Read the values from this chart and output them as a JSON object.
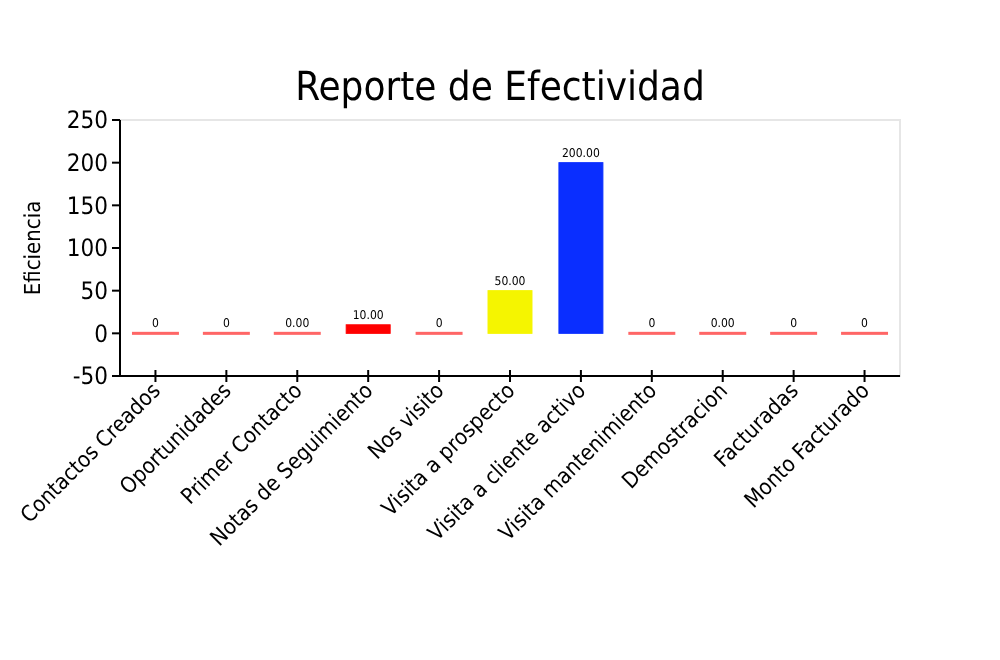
{
  "chart_data": {
    "type": "bar",
    "title": "Reporte de Efectividad",
    "ylabel": "Eficiencia",
    "categories": [
      "Contactos Creados",
      "Oportunidades",
      "Primer Contacto",
      "Notas de Seguimiento",
      "Nos visito",
      "Visita a prospecto",
      "Visita a cliente activo",
      "Visita mantenimiento",
      "Demostracion",
      "Facturadas",
      "Monto Facturado"
    ],
    "values": [
      0,
      0,
      0,
      10,
      0,
      50,
      200,
      0,
      0,
      0,
      0
    ],
    "colors": [
      "#ff6666",
      "#ff6666",
      "#ff6666",
      "#ff0000",
      "#ff6666",
      "#f5f500",
      "#0a2eff",
      "#ff6666",
      "#ff6666",
      "#ff6666",
      "#ff6666"
    ],
    "value_labels": [
      "0",
      "0",
      "0.00",
      "10.00",
      "0",
      "50.00",
      "200.00",
      "0",
      "0.00",
      "0",
      "0"
    ],
    "ylim": [
      -50,
      250
    ],
    "yticks": [
      -50,
      0,
      50,
      100,
      150,
      200,
      250
    ],
    "grid": false
  }
}
